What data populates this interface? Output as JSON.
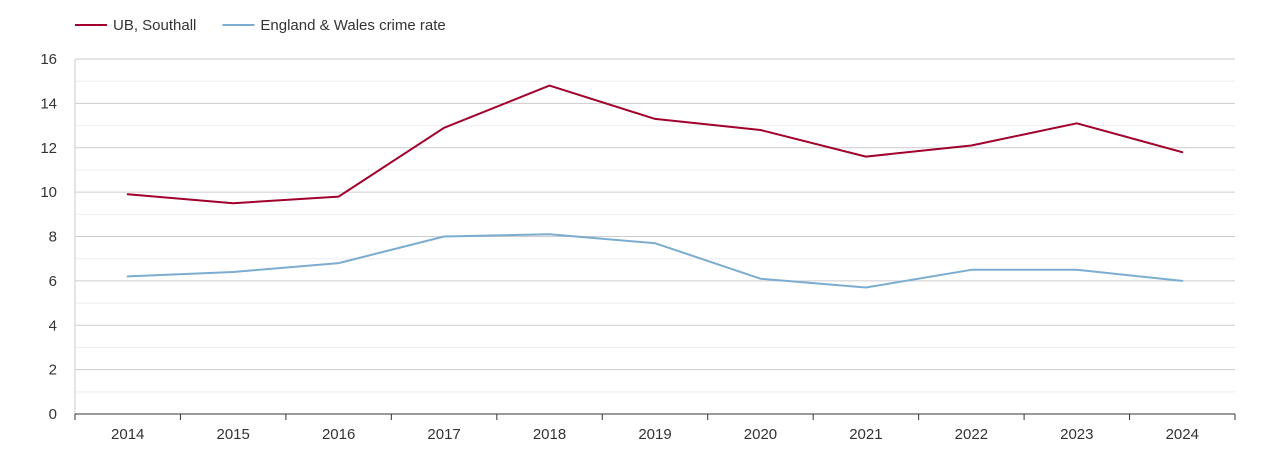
{
  "chart_data": {
    "type": "line",
    "title": "",
    "xlabel": "",
    "ylabel": "",
    "categories": [
      "2014",
      "2015",
      "2016",
      "2017",
      "2018",
      "2019",
      "2020",
      "2021",
      "2022",
      "2023",
      "2024"
    ],
    "ylim": [
      0,
      16
    ],
    "y_ticks": [
      "0",
      "2",
      "4",
      "6",
      "8",
      "10",
      "12",
      "14",
      "16"
    ],
    "grid": true,
    "legend_position": "top-left",
    "series": [
      {
        "name": "UB, Southall",
        "color": "#a0002b",
        "values": [
          9.9,
          9.5,
          9.8,
          12.9,
          14.8,
          13.3,
          12.8,
          11.6,
          12.1,
          13.1,
          11.8
        ]
      },
      {
        "name": "England & Wales crime rate",
        "color": "#7aadd0",
        "values": [
          6.2,
          6.4,
          6.8,
          8.0,
          8.1,
          7.7,
          6.1,
          5.7,
          6.5,
          6.5,
          6.0
        ]
      }
    ]
  }
}
